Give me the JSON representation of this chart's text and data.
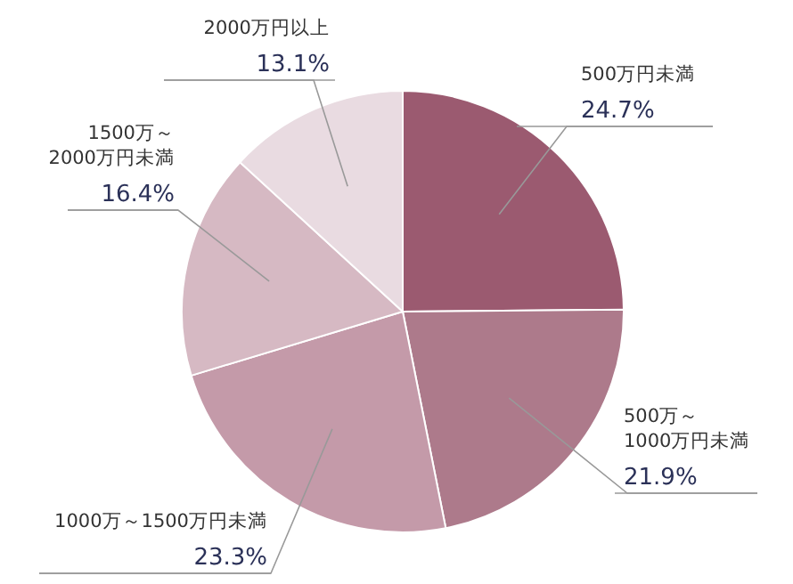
{
  "chart_data": {
    "type": "pie",
    "categories": [
      "500万円未満",
      "500万～\n1000万円未満",
      "1000万～1500万円未満",
      "1500万～\n2000万円未満",
      "2000万円以上"
    ],
    "values": [
      24.7,
      21.9,
      23.3,
      16.4,
      13.1
    ],
    "colors": [
      "#9b5a70",
      "#ad7a8b",
      "#c49aa9",
      "#d6b9c3",
      "#e9dbe1"
    ],
    "value_labels": [
      "24.7%",
      "21.9%",
      "23.3%",
      "16.4%",
      "13.1%"
    ]
  }
}
